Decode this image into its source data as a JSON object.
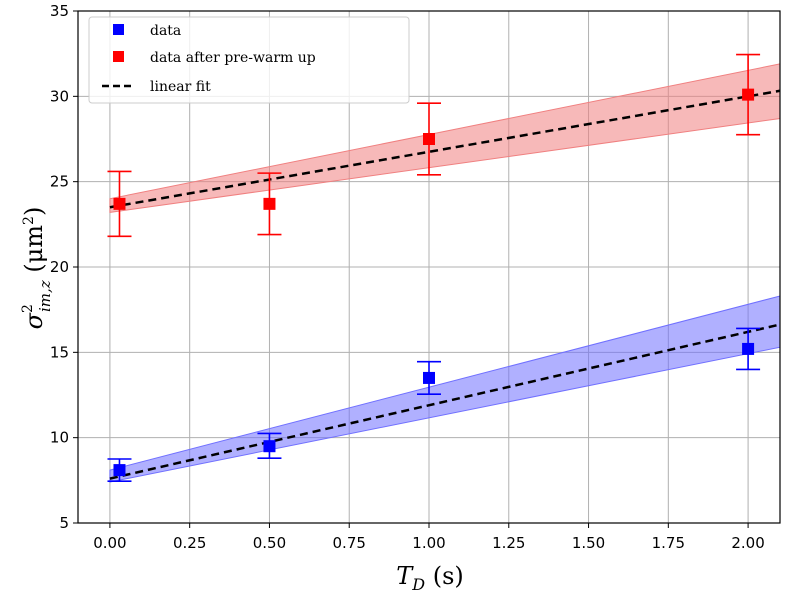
{
  "chart_data": {
    "type": "scatter",
    "title": "",
    "xlabel": "T_D (s)",
    "ylabel": "σ²_{im,z} (μm²)",
    "xlim": [
      -0.1,
      2.1
    ],
    "ylim": [
      5,
      35
    ],
    "xticks": [
      "0.00",
      "0.25",
      "0.50",
      "0.75",
      "1.00",
      "1.25",
      "1.50",
      "1.75",
      "2.00"
    ],
    "yticks": [
      "5",
      "10",
      "15",
      "20",
      "25",
      "30",
      "35"
    ],
    "grid": true,
    "legend": {
      "placement": "top-left",
      "entries": [
        "data",
        "data after pre-warm up",
        "linear fit"
      ]
    },
    "series": [
      {
        "name": "data",
        "color": "#0000ff",
        "band_color": "#7070ff",
        "points": [
          {
            "x": 0.03,
            "y": 8.1,
            "err_low": 0.65,
            "err_high": 0.65
          },
          {
            "x": 0.5,
            "y": 9.5,
            "err_low": 0.7,
            "err_high": 0.75
          },
          {
            "x": 1.0,
            "y": 13.5,
            "err_low": 0.95,
            "err_high": 0.95
          },
          {
            "x": 2.0,
            "y": 15.2,
            "err_low": 1.2,
            "err_high": 1.2
          }
        ],
        "fit": {
          "intercept": 7.6,
          "slope": 4.3
        },
        "band": {
          "low": [
            7.4,
            15.3
          ],
          "high": [
            8.1,
            18.3
          ]
        }
      },
      {
        "name": "data after pre-warm up",
        "color": "#ff0000",
        "band_color": "#f08080",
        "points": [
          {
            "x": 0.03,
            "y": 23.7,
            "err_low": 1.9,
            "err_high": 1.9
          },
          {
            "x": 0.5,
            "y": 23.7,
            "err_low": 1.8,
            "err_high": 1.8
          },
          {
            "x": 1.0,
            "y": 27.5,
            "err_low": 2.1,
            "err_high": 2.1
          },
          {
            "x": 2.0,
            "y": 30.1,
            "err_low": 2.35,
            "err_high": 2.35
          }
        ],
        "fit": {
          "intercept": 23.5,
          "slope": 3.25
        },
        "band": {
          "low": [
            23.2,
            28.7
          ],
          "high": [
            24.0,
            31.9
          ]
        }
      }
    ],
    "fit_line": {
      "name": "linear fit",
      "color": "#000000",
      "style": "dashed"
    }
  }
}
